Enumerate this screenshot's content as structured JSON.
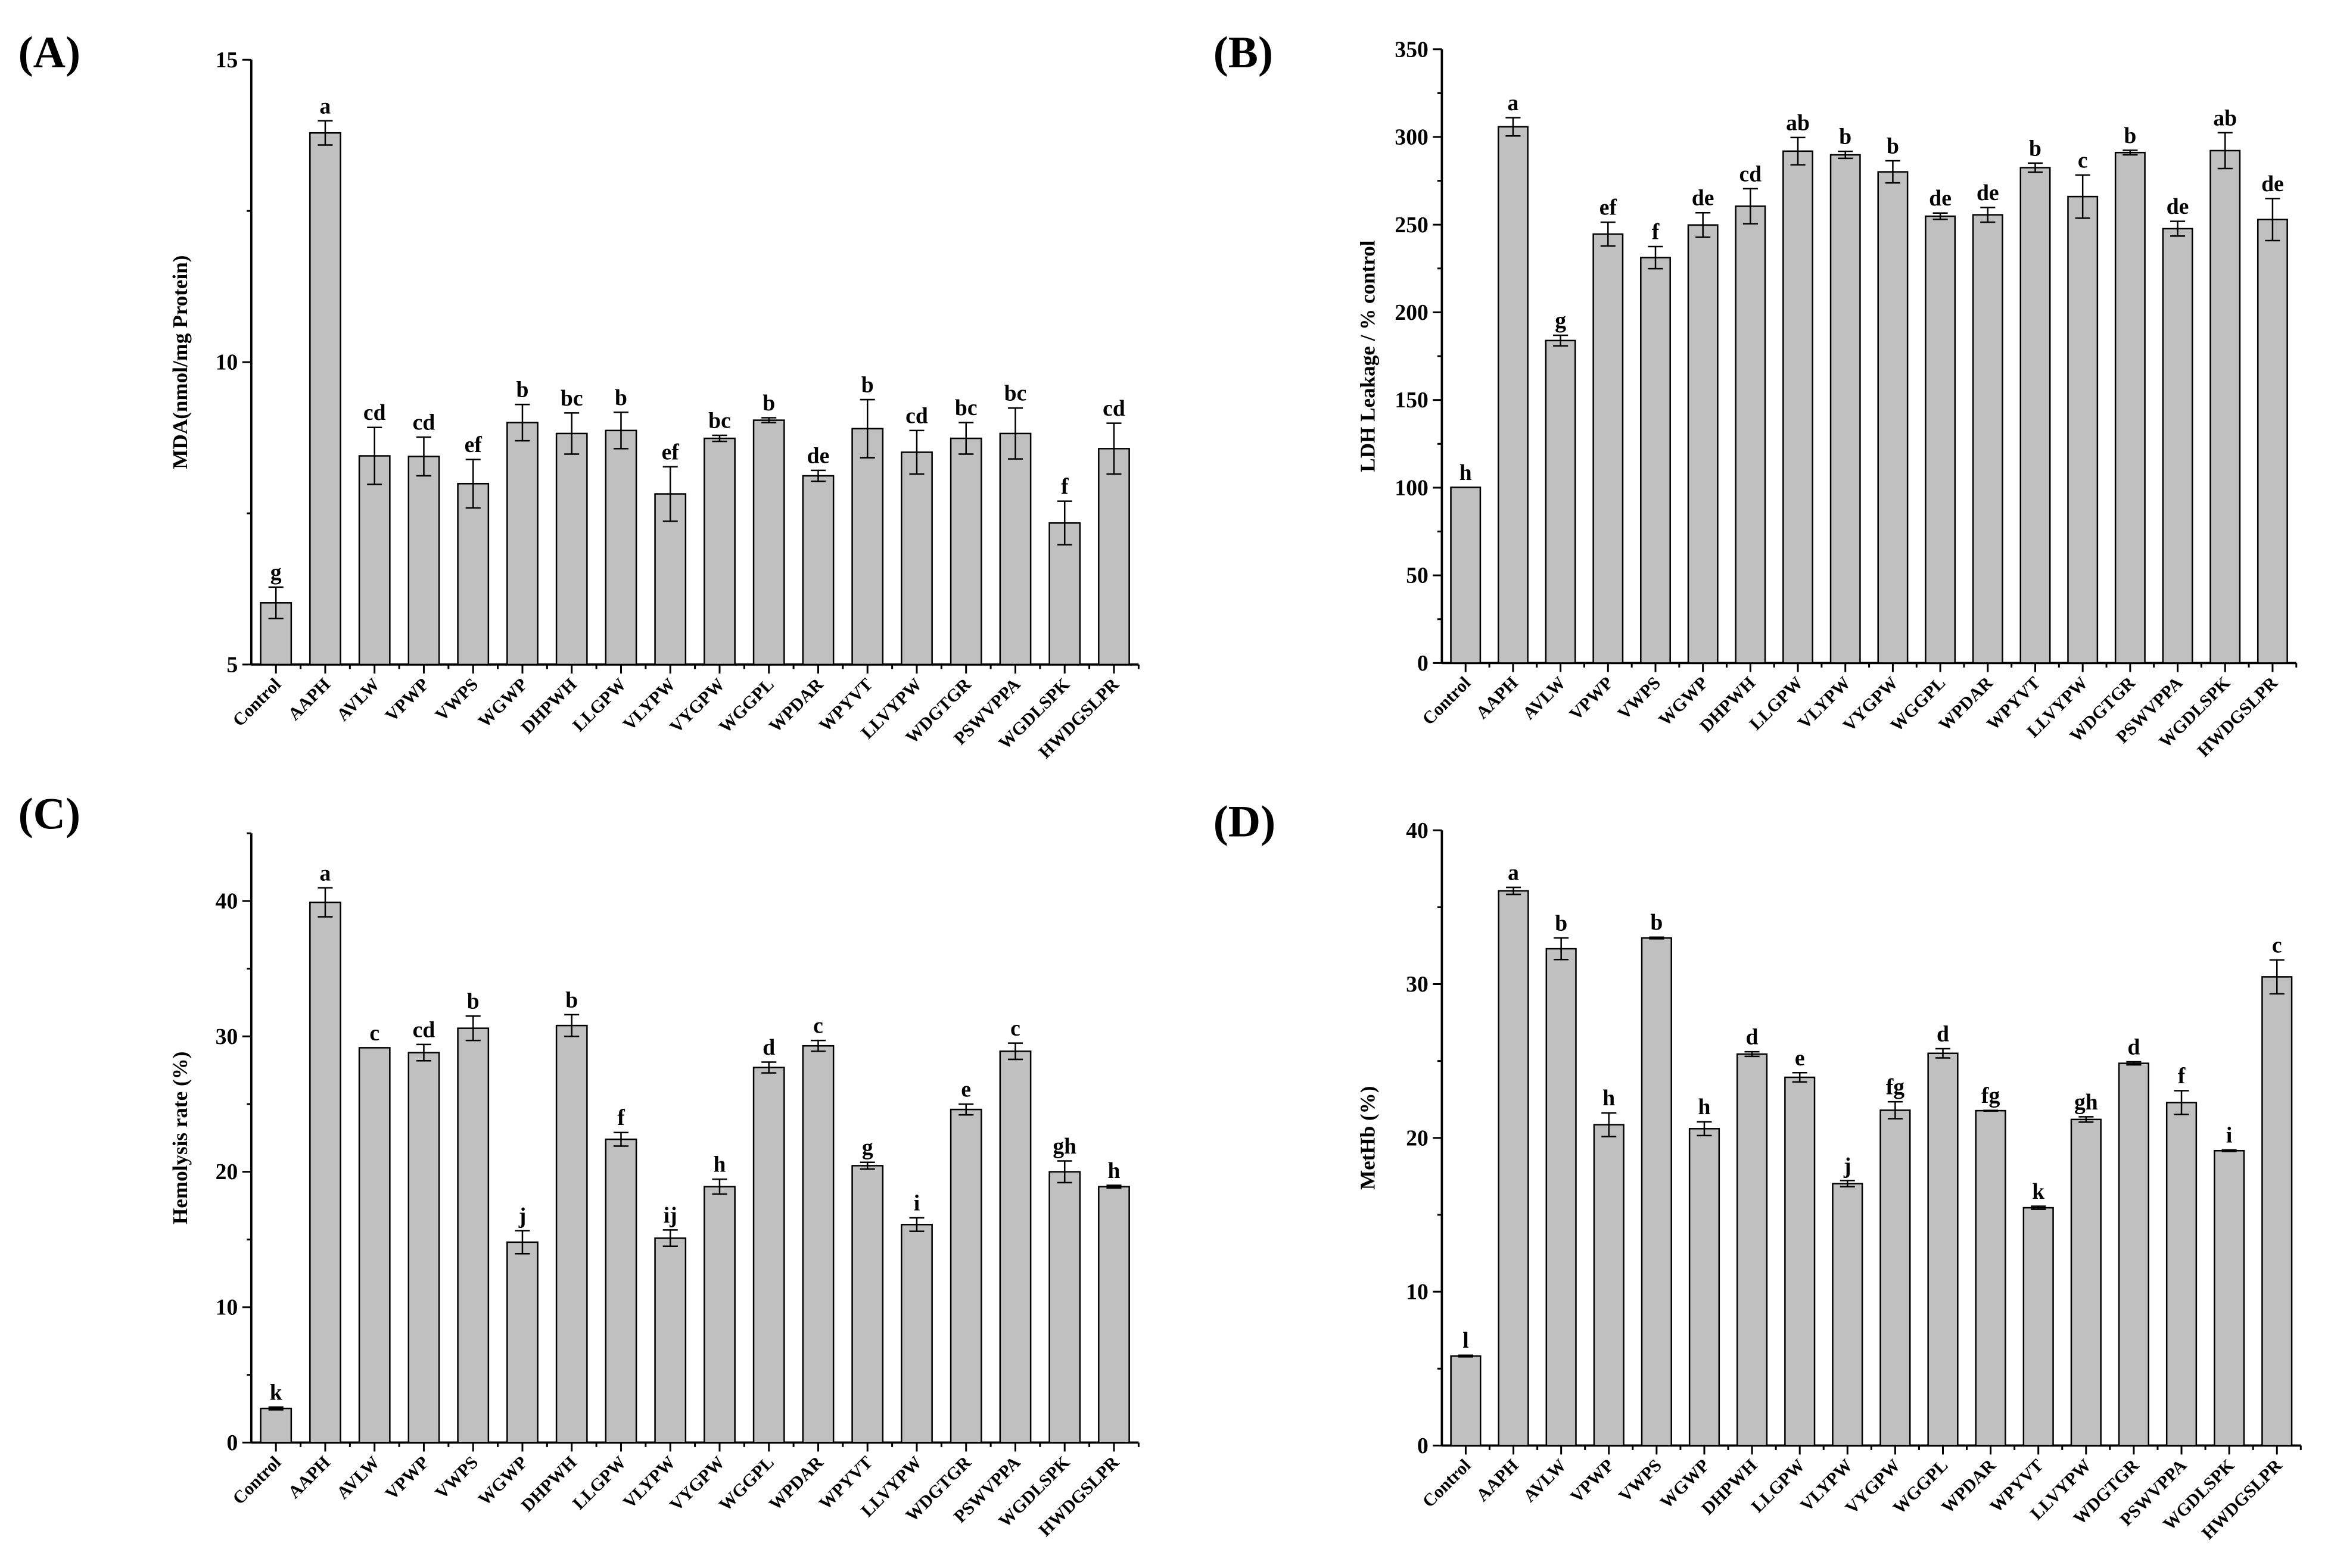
{
  "colors": {
    "bar_fill": "#c0c0c0",
    "bar_stroke": "#000000",
    "axis": "#000000"
  },
  "chart_data": [
    {
      "panel_label": "(A)",
      "type": "bar",
      "ylabel": "MDA(nmol/mg Protein)",
      "ylim": [
        5,
        15
      ],
      "yticks": [
        5,
        10,
        15
      ],
      "minor_step": 2.5,
      "grid": false,
      "categories": [
        "Control",
        "AAPH",
        "AVLW",
        "VPWP",
        "VWPS",
        "WGWP",
        "DHPWH",
        "LLGPW",
        "VLYPW",
        "VYGPW",
        "WGGPL",
        "WPDAR",
        "WPYVT",
        "LLVYPW",
        "WDGTGR",
        "PSWVPPA",
        "WGDLSPK",
        "HWDGSLPR"
      ],
      "values": [
        6.02,
        13.79,
        8.45,
        8.44,
        7.99,
        9.0,
        8.82,
        8.87,
        7.82,
        8.74,
        9.04,
        8.12,
        8.9,
        8.51,
        8.74,
        8.82,
        7.34,
        8.57
      ],
      "errors": [
        0.26,
        0.2,
        0.47,
        0.32,
        0.4,
        0.3,
        0.34,
        0.3,
        0.45,
        0.05,
        0.04,
        0.09,
        0.48,
        0.36,
        0.26,
        0.42,
        0.36,
        0.42
      ],
      "letters": [
        "g",
        "a",
        "cd",
        "cd",
        "ef",
        "b",
        "bc",
        "b",
        "ef",
        "bc",
        "b",
        "de",
        "b",
        "cd",
        "bc",
        "bc",
        "f",
        "cd"
      ]
    },
    {
      "panel_label": "(B)",
      "type": "bar",
      "ylabel": "LDH Leakage / % control",
      "ylim": [
        0,
        350
      ],
      "yticks": [
        0,
        50,
        100,
        150,
        200,
        250,
        300,
        350
      ],
      "minor_step": 25,
      "grid": false,
      "categories": [
        "Control",
        "AAPH",
        "AVLW",
        "VPWP",
        "VWPS",
        "WGWP",
        "DHPWH",
        "LLGPW",
        "VLYPW",
        "VYGPW",
        "WGGPL",
        "WPDAR",
        "WPYVT",
        "LLVYPW",
        "WDGTGR",
        "PSWVPPA",
        "WGDLSPK",
        "HWDGSLPR"
      ],
      "values": [
        100.2,
        305.8,
        183.9,
        244.6,
        231.2,
        249.8,
        260.5,
        291.9,
        289.8,
        280.1,
        254.8,
        255.6,
        282.5,
        266.0,
        291.1,
        247.7,
        292.2,
        252.9
      ],
      "errors": [
        0,
        5.2,
        3.0,
        6.8,
        6.3,
        7.0,
        10.0,
        7.8,
        2.0,
        6.3,
        1.8,
        4.2,
        2.6,
        12.3,
        1.3,
        4.2,
        10.2,
        12.0
      ],
      "letters": [
        "h",
        "a",
        "g",
        "ef",
        "f",
        "de",
        "cd",
        "ab",
        "b",
        "b",
        "de",
        "de",
        "b",
        "c",
        "b",
        "de",
        "ab",
        "de"
      ]
    },
    {
      "panel_label": "(C)",
      "type": "bar",
      "ylabel": "Hemolysis rate (%)",
      "ylim": [
        0,
        45
      ],
      "yticks": [
        0,
        10,
        20,
        30,
        40
      ],
      "minor_step": 5,
      "grid": false,
      "categories": [
        "Control",
        "AAPH",
        "AVLW",
        "VPWP",
        "VWPS",
        "WGWP",
        "DHPWH",
        "LLGPW",
        "VLYPW",
        "VYGPW",
        "WGGPL",
        "WPDAR",
        "WPYVT",
        "LLVYPW",
        "WDGTGR",
        "PSWVPPA",
        "WGDLSPK",
        "HWDGSLPR"
      ],
      "values": [
        2.52,
        39.9,
        29.16,
        28.8,
        30.6,
        14.8,
        30.8,
        22.4,
        15.1,
        18.9,
        27.7,
        29.3,
        20.45,
        16.1,
        24.6,
        28.9,
        20.0,
        18.9
      ],
      "errors": [
        0.1,
        1.07,
        0,
        0.6,
        0.9,
        0.85,
        0.8,
        0.5,
        0.6,
        0.55,
        0.4,
        0.4,
        0.25,
        0.5,
        0.4,
        0.6,
        0.8,
        0.1
      ],
      "letters": [
        "k",
        "a",
        "c",
        "cd",
        "b",
        "j",
        "b",
        "f",
        "ij",
        "h",
        "d",
        "c",
        "g",
        "i",
        "e",
        "c",
        "gh",
        "h"
      ]
    },
    {
      "panel_label": "(D)",
      "type": "bar",
      "ylabel": "MetHb (%)",
      "ylim": [
        0,
        40
      ],
      "yticks": [
        0,
        10,
        20,
        30,
        40
      ],
      "minor_step": 5,
      "grid": false,
      "categories": [
        "Control",
        "AAPH",
        "AVLW",
        "VPWP",
        "VWPS",
        "WGWP",
        "DHPWH",
        "LLGPW",
        "VLYPW",
        "VYGPW",
        "WGGPL",
        "WPDAR",
        "WPYVT",
        "LLVYPW",
        "WDGTGR",
        "PSWVPPA",
        "WGDLSPK",
        "HWDGSLPR"
      ],
      "values": [
        5.82,
        36.06,
        32.3,
        20.86,
        33.0,
        20.6,
        25.45,
        23.94,
        17.03,
        21.8,
        25.5,
        21.77,
        15.46,
        21.2,
        24.85,
        22.3,
        19.17,
        30.47
      ],
      "errors": [
        0.05,
        0.23,
        0.7,
        0.77,
        0.05,
        0.45,
        0.15,
        0.3,
        0.2,
        0.55,
        0.3,
        0.02,
        0.1,
        0.17,
        0.1,
        0.77,
        0.05,
        1.1
      ],
      "letters": [
        "l",
        "a",
        "b",
        "h",
        "b",
        "h",
        "d",
        "e",
        "j",
        "fg",
        "d",
        "fg",
        "k",
        "gh",
        "d",
        "f",
        "i",
        "c"
      ]
    }
  ]
}
